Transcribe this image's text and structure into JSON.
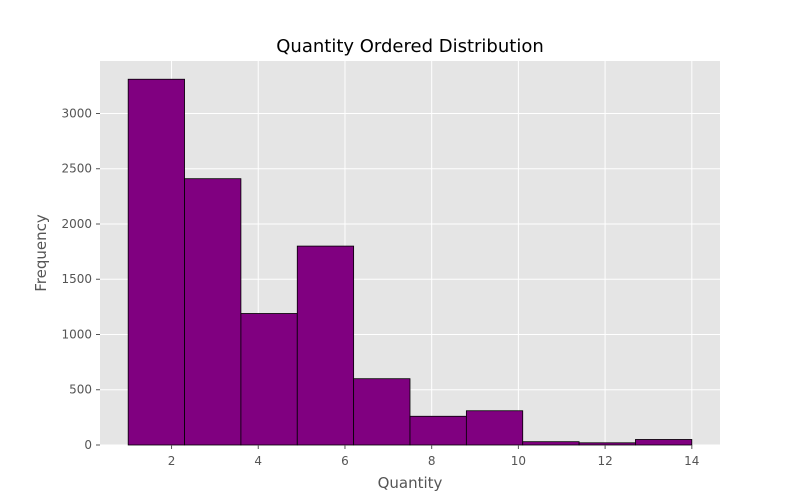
{
  "chart_data": {
    "type": "bar",
    "title": "Quantity Ordered Distribution",
    "xlabel": "Quantity",
    "ylabel": "Frequency",
    "bin_edges": [
      1,
      2.3,
      3.6,
      4.9,
      6.2,
      7.5,
      8.8,
      10.1,
      11.4,
      12.7,
      14
    ],
    "values": [
      3310,
      2410,
      1190,
      1800,
      600,
      260,
      310,
      30,
      20,
      50
    ],
    "xlim": [
      0.35,
      14.65
    ],
    "ylim": [
      0,
      3475
    ],
    "xticks": [
      2,
      4,
      6,
      8,
      10,
      12,
      14
    ],
    "yticks": [
      0,
      500,
      1000,
      1500,
      2000,
      2500,
      3000
    ],
    "grid": true,
    "legend": "none",
    "colors": {
      "bar_fill": "#800080",
      "bar_edge": "#000000",
      "plot_background": "#e5e5e5",
      "grid": "#ffffff",
      "figure_background": "#ffffff"
    }
  }
}
